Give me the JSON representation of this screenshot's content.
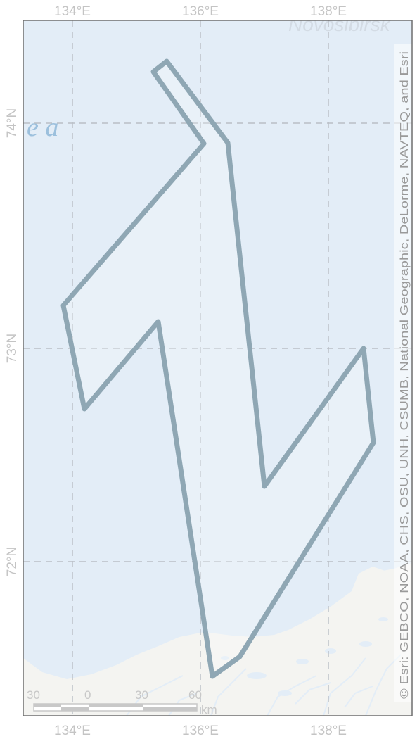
{
  "map": {
    "lon_ticks_top": [
      "134°E",
      "136°E",
      "138°E"
    ],
    "lon_ticks_bottom": [
      "134°E",
      "136°E",
      "138°E"
    ],
    "lat_ticks": [
      "74°N",
      "73°N",
      "72°N"
    ],
    "attribution": "© Esri: GEBCO, NOAA, CHS, OSU, UNH, CSUMB, National Geographic, DeLorme, NAVTEQ, and Esri",
    "basemap_labels": {
      "sea_fragment": "e a",
      "place_fragment": "Novosibirsk"
    },
    "scale_bar": {
      "labels": [
        "30",
        "0",
        "30",
        "60"
      ],
      "unit": "km"
    },
    "colors": {
      "water": "#e3edf7",
      "land": "#f4f4f1",
      "track": "#8fa7b4",
      "grid": "#b9bfc6",
      "frame": "#6f6f6f"
    }
  }
}
